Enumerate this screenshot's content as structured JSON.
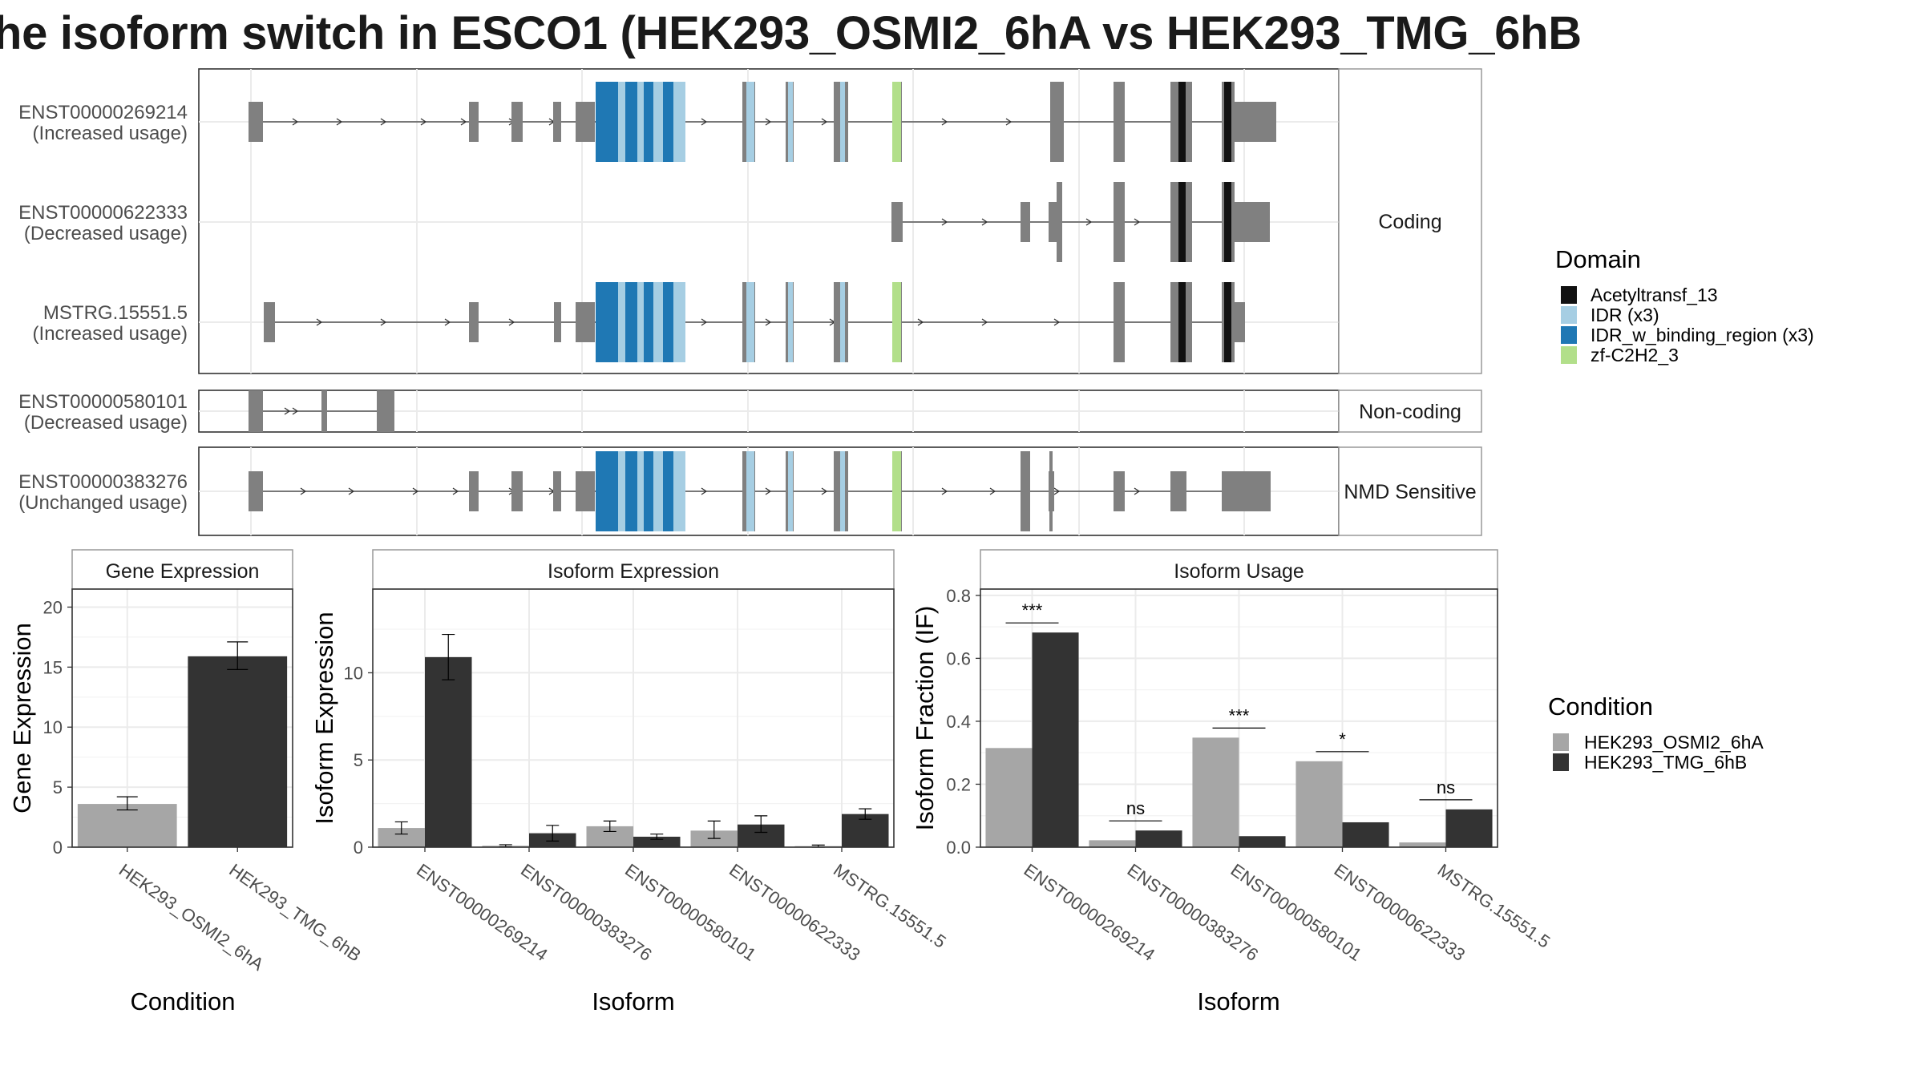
{
  "title": "he isoform switch in ESCO1 (HEK293_OSMI2_6hA vs HEK293_TMG_6hB",
  "colors": {
    "exon": "#808080",
    "Acetyltransf_13": "#111111",
    "IDR": "#a6cee3",
    "IDR_w_binding_region": "#1f78b4",
    "zf-C2H2_3": "#b2df8a",
    "cond1": "#a6a6a6",
    "cond2": "#333333"
  },
  "transcripts": {
    "groups": [
      {
        "label": "Coding",
        "rows": [
          {
            "id": "ENST00000269214",
            "usage": "(Increased usage)"
          },
          {
            "id": "ENST00000622333",
            "usage": "(Decreased usage)"
          },
          {
            "id": "MSTRG.15551.5",
            "usage": "(Increased usage)"
          }
        ]
      },
      {
        "label": "Non-coding",
        "rows": [
          {
            "id": "ENST00000580101",
            "usage": "(Decreased usage)"
          }
        ]
      },
      {
        "label": "NMD Sensitive",
        "rows": [
          {
            "id": "ENST00000383276",
            "usage": "(Unchanged usage)"
          }
        ]
      }
    ]
  },
  "domain_legend": {
    "title": "Domain",
    "items": [
      {
        "label": "Acetyltransf_13",
        "color": "#111111"
      },
      {
        "label": "IDR (x3)",
        "color": "#a6cee3"
      },
      {
        "label": "IDR_w_binding_region (x3)",
        "color": "#1f78b4"
      },
      {
        "label": "zf-C2H2_3",
        "color": "#b2df8a"
      }
    ]
  },
  "condition_legend": {
    "title": "Condition",
    "items": [
      {
        "label": "HEK293_OSMI2_6hA",
        "color": "#a6a6a6"
      },
      {
        "label": "HEK293_TMG_6hB",
        "color": "#333333"
      }
    ]
  },
  "chart_data": [
    {
      "type": "bar",
      "title": "Gene Expression",
      "xlabel": "Condition",
      "ylabel": "Gene Expression",
      "categories": [
        "HEK293_OSMI2_6hA",
        "HEK293_TMG_6hB"
      ],
      "values": [
        3.6,
        15.9
      ],
      "errors": [
        [
          3.1,
          4.2
        ],
        [
          14.8,
          17.1
        ]
      ],
      "ylim": [
        0,
        21.5
      ],
      "yticks": [
        0,
        5,
        10,
        15,
        20
      ],
      "grid": true
    },
    {
      "type": "bar",
      "title": "Isoform Expression",
      "xlabel": "Isoform",
      "ylabel": "Isoform Expression",
      "categories": [
        "ENST00000269214",
        "ENST00000383276",
        "ENST00000580101",
        "ENST00000622333",
        "MSTRG.15551.5"
      ],
      "series": [
        {
          "name": "HEK293_OSMI2_6hA",
          "values": [
            1.1,
            0.08,
            1.2,
            0.95,
            0.06
          ],
          "errors": [
            [
              0.75,
              1.45
            ],
            [
              0.02,
              0.14
            ],
            [
              0.9,
              1.5
            ],
            [
              0.5,
              1.5
            ],
            [
              0.0,
              0.12
            ]
          ]
        },
        {
          "name": "HEK293_TMG_6hB",
          "values": [
            10.9,
            0.8,
            0.6,
            1.3,
            1.9
          ],
          "errors": [
            [
              9.6,
              12.2
            ],
            [
              0.35,
              1.25
            ],
            [
              0.45,
              0.75
            ],
            [
              0.85,
              1.8
            ],
            [
              1.6,
              2.2
            ]
          ]
        }
      ],
      "ylim": [
        0,
        14.8
      ],
      "yticks": [
        0,
        5,
        10
      ],
      "grid": true,
      "legend": "right"
    },
    {
      "type": "bar",
      "title": "Isoform Usage",
      "xlabel": "Isoform",
      "ylabel": "Isoform Fraction (IF)",
      "categories": [
        "ENST00000269214",
        "ENST00000383276",
        "ENST00000580101",
        "ENST00000622333",
        "MSTRG.15551.5"
      ],
      "series": [
        {
          "name": "HEK293_OSMI2_6hA",
          "values": [
            0.315,
            0.022,
            0.348,
            0.273,
            0.015
          ]
        },
        {
          "name": "HEK293_TMG_6hB",
          "values": [
            0.682,
            0.053,
            0.035,
            0.079,
            0.12
          ]
        }
      ],
      "significance": [
        "***",
        "ns",
        "***",
        "*",
        "ns"
      ],
      "ylim": [
        0,
        0.82
      ],
      "yticks": [
        "0.0",
        "0.2",
        "0.4",
        "0.6",
        "0.8"
      ],
      "grid": true,
      "legend": "right"
    }
  ]
}
